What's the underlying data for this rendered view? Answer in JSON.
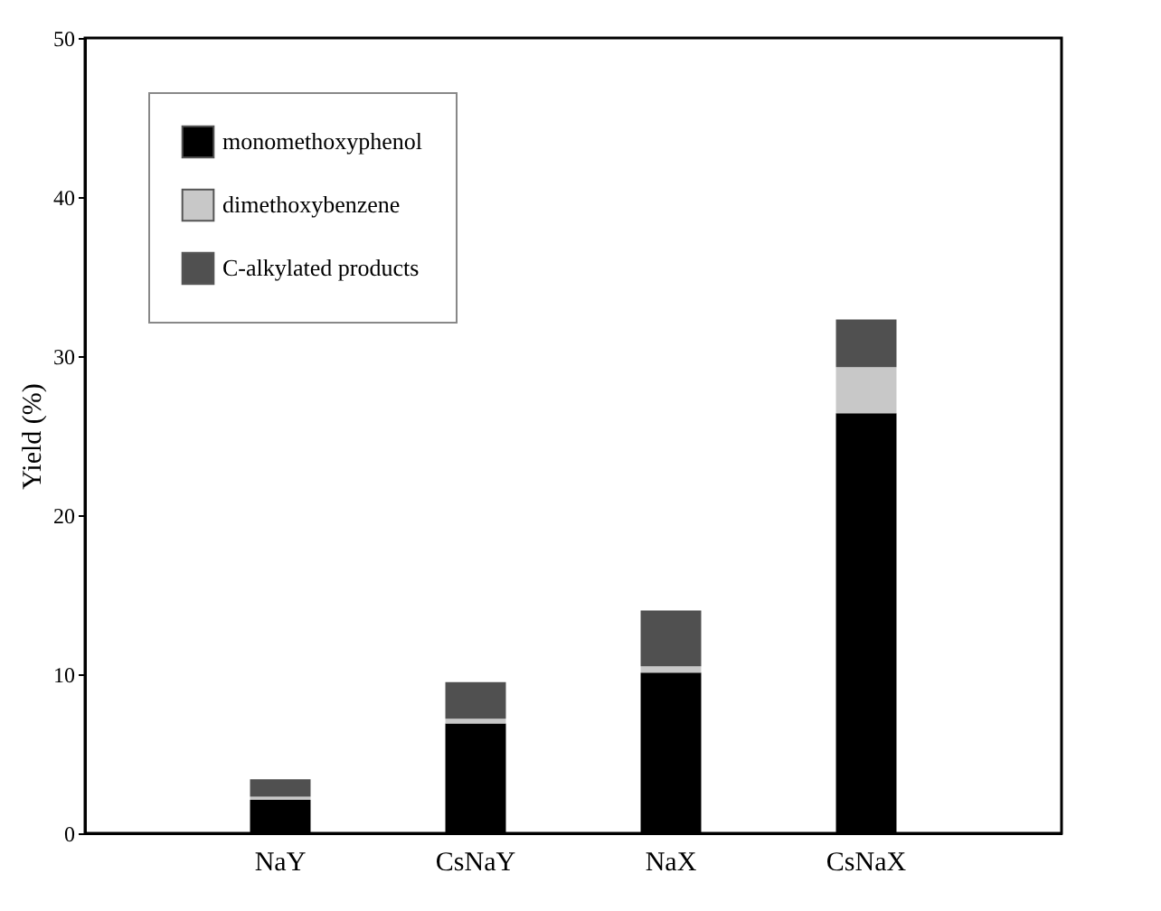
{
  "chart_data": {
    "type": "bar",
    "stacked": true,
    "ylabel": "Yield (%)",
    "categories": [
      "NaY",
      "CsNaY",
      "NaX",
      "CsNaX"
    ],
    "series": [
      {
        "name": "monomethoxyphenol",
        "color": "#000000",
        "values": [
          2.1,
          6.9,
          10.1,
          26.4
        ]
      },
      {
        "name": "dimethoxybenzene",
        "color": "#c8c8c8",
        "values": [
          0.2,
          0.3,
          0.4,
          2.9
        ]
      },
      {
        "name": "C-alkylated products",
        "color": "#505050",
        "values": [
          1.1,
          2.3,
          3.5,
          3.0
        ]
      }
    ],
    "ylim": [
      0,
      50
    ],
    "yticks": [
      0,
      10,
      20,
      30,
      40,
      50
    ],
    "grid": false,
    "legend": "top left"
  }
}
